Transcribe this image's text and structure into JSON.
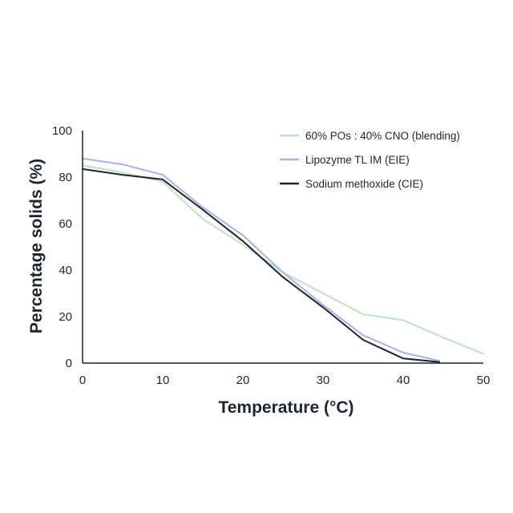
{
  "chart_data": {
    "type": "line",
    "title": "",
    "xlabel": "Temperature (°C)",
    "ylabel": "Percentage solids (%)",
    "xlim": [
      0,
      50
    ],
    "ylim": [
      0,
      100
    ],
    "xticks": [
      0,
      10,
      20,
      30,
      40,
      50
    ],
    "yticks": [
      0,
      20,
      40,
      60,
      80,
      100
    ],
    "grid": false,
    "legend_position": "top-right",
    "series": [
      {
        "name": "60% POs : 40% CNO (blending)",
        "color": "#bfe2c4",
        "x": [
          0,
          5,
          10,
          15,
          20,
          25,
          30,
          35,
          40,
          45,
          50
        ],
        "y": [
          85,
          82,
          78,
          62,
          51,
          39,
          30,
          21,
          18.5,
          11,
          4
        ]
      },
      {
        "name": "Lipozyme TL IM (EIE)",
        "color": "#a8b3e8",
        "x": [
          0,
          5,
          10,
          15,
          20,
          25,
          30,
          35,
          40,
          44.5
        ],
        "y": [
          88,
          85.5,
          81,
          67,
          55,
          39,
          25,
          12,
          4.5,
          1
        ]
      },
      {
        "name": "Sodium methoxide (CIE)",
        "color": "#1c2431",
        "x": [
          0,
          5,
          10,
          15,
          20,
          25,
          30,
          35,
          40,
          44.5
        ],
        "y": [
          83.5,
          81,
          79,
          66,
          52.5,
          37,
          24,
          10,
          2,
          0.5
        ]
      }
    ]
  }
}
